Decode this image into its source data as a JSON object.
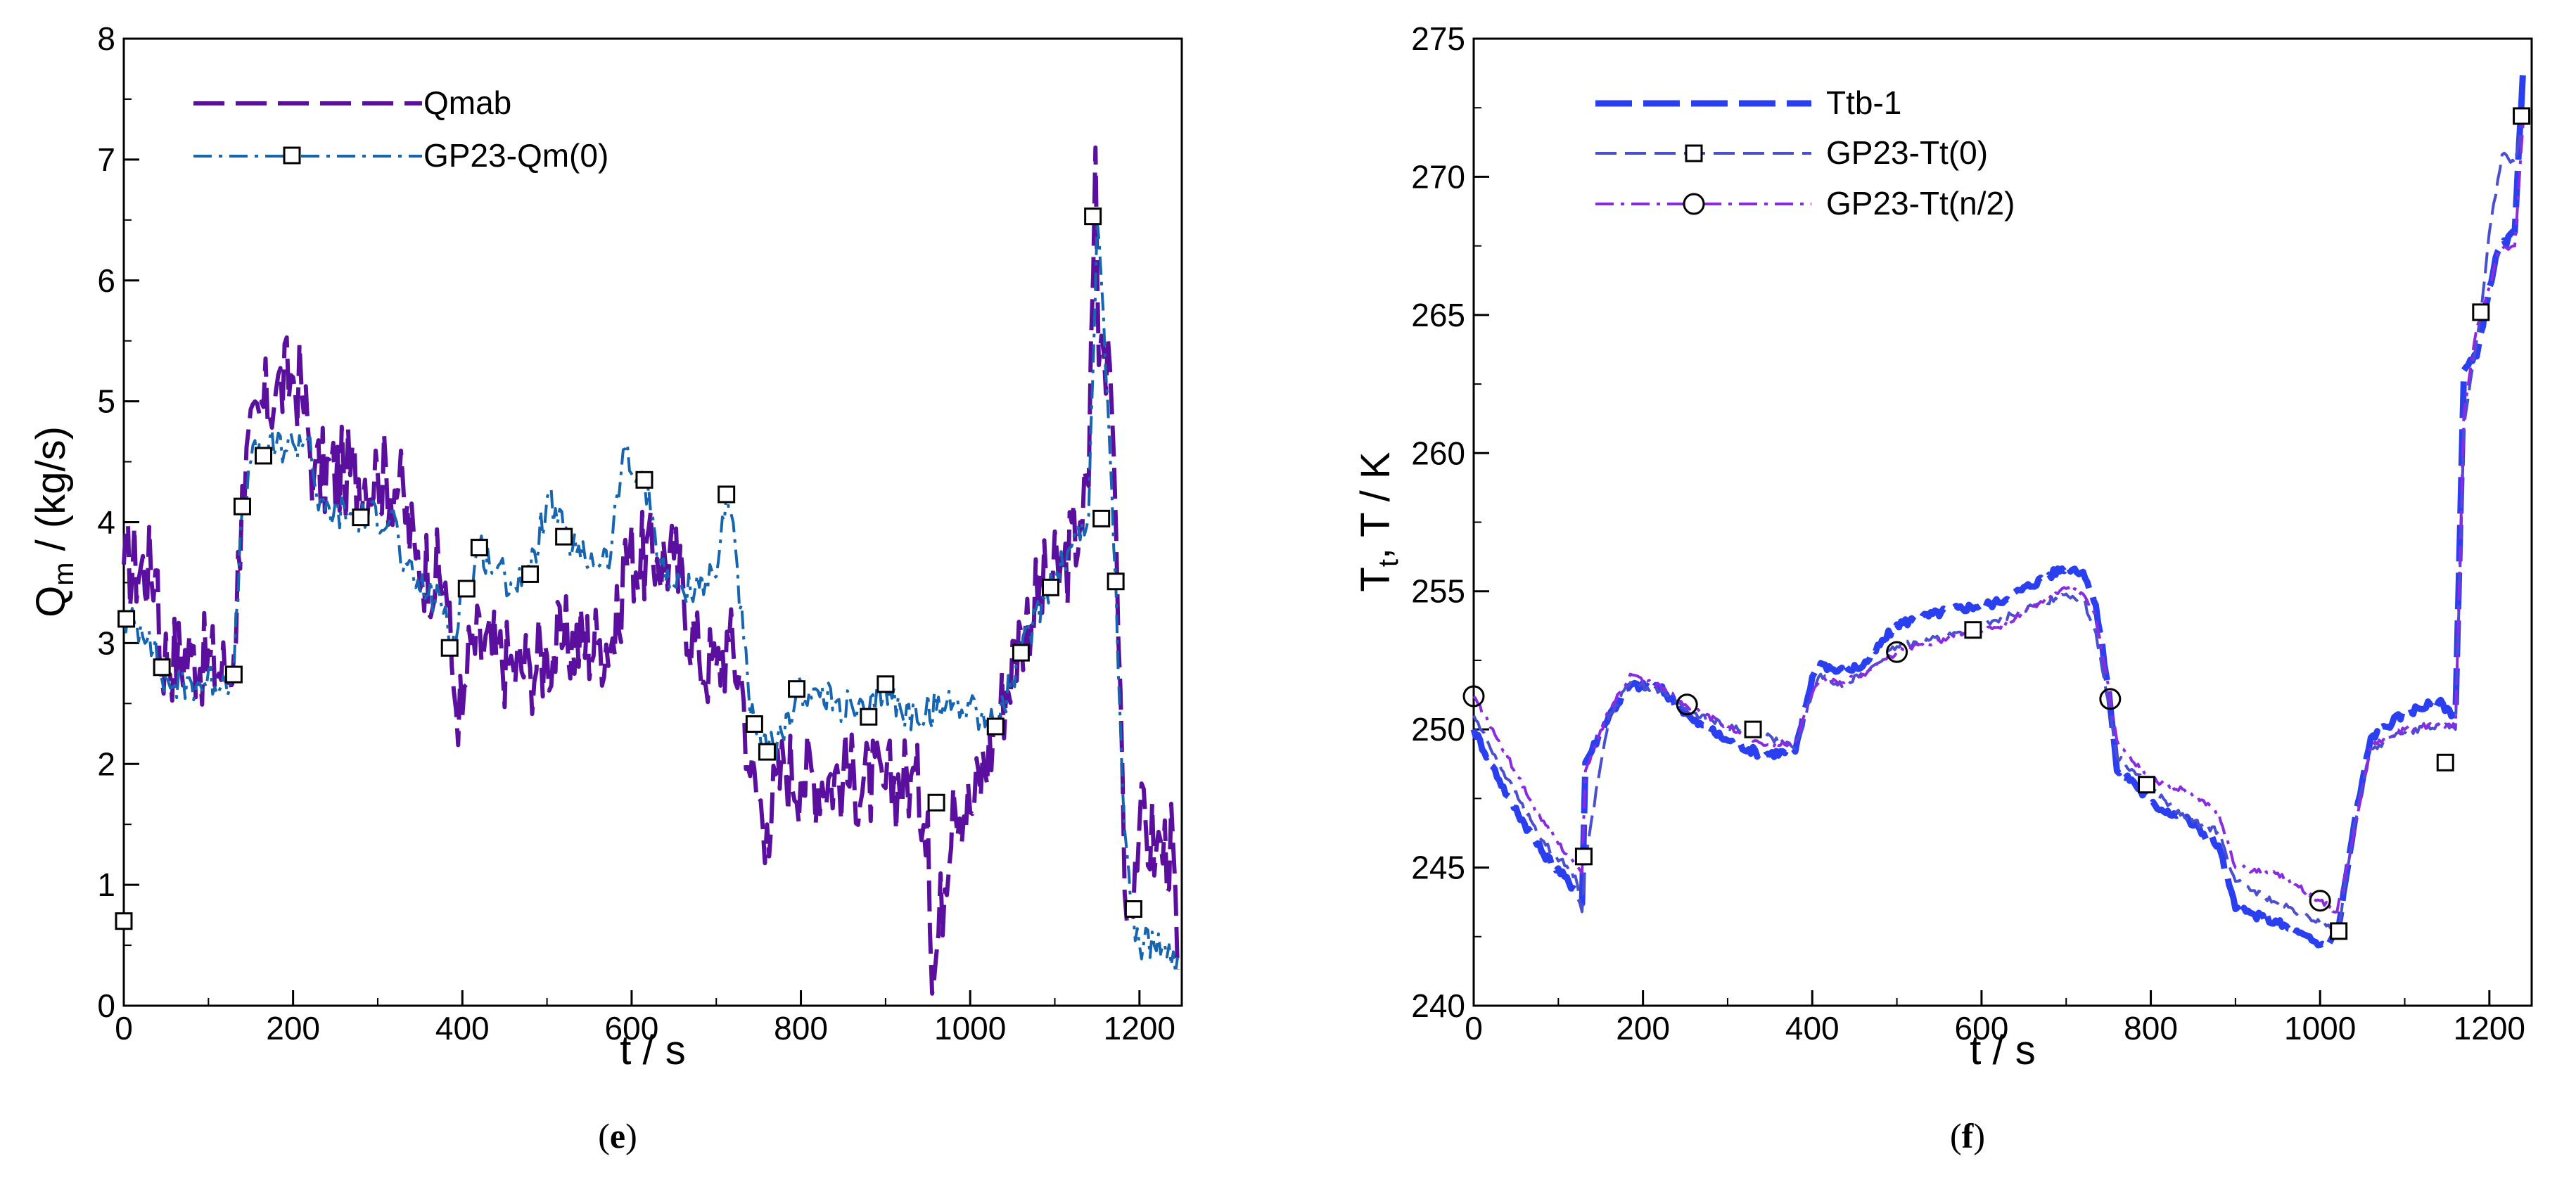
{
  "chart_data": [
    {
      "type": "line",
      "panel": "e",
      "caption_letter": "e",
      "xlabel": "t / s",
      "ylabel_main": "Q",
      "ylabel_sub": "m",
      "ylabel_tail": " / (kg/s)",
      "xlim": [
        0,
        1250
      ],
      "ylim": [
        0,
        8
      ],
      "xticks": [
        0,
        200,
        400,
        600,
        800,
        1000,
        1200
      ],
      "yticks": [
        0,
        1,
        2,
        3,
        4,
        5,
        6,
        7,
        8
      ],
      "legend_position": "top-left",
      "grid": false,
      "series": [
        {
          "name": "Qmab",
          "color": "#5b0f9e",
          "style": "long-dash",
          "marker": "none",
          "noise": 0.4,
          "x": [
            0,
            40,
            42,
            80,
            125,
            130,
            140,
            160,
            180,
            200,
            210,
            225,
            260,
            300,
            325,
            345,
            380,
            390,
            400,
            410,
            440,
            460,
            480,
            500,
            520,
            560,
            585,
            590,
            630,
            650,
            680,
            700,
            715,
            730,
            740,
            760,
            780,
            800,
            850,
            900,
            930,
            950,
            955,
            980,
            1000,
            1030,
            1060,
            1090,
            1110,
            1130,
            1140,
            1148,
            1152,
            1158,
            1165,
            1170,
            1180,
            1185,
            1200,
            1220,
            1240,
            1245
          ],
          "y": [
            3.65,
            3.6,
            2.9,
            2.9,
            2.75,
            2.9,
            4.3,
            4.9,
            5.1,
            5.2,
            5.1,
            4.4,
            4.4,
            4.4,
            4.3,
            3.7,
            3.5,
            2.6,
            2.4,
            3.0,
            2.9,
            2.8,
            2.8,
            2.9,
            3.0,
            3.0,
            3.1,
            3.7,
            3.7,
            3.7,
            2.85,
            2.8,
            3.0,
            2.7,
            1.9,
            1.5,
            2.0,
            1.9,
            1.9,
            1.8,
            1.9,
            1.6,
            0.1,
            1.8,
            1.6,
            2.3,
            3.1,
            3.5,
            3.6,
            4.0,
            4.3,
            7.1,
            5.3,
            5.4,
            5.3,
            4.5,
            1.9,
            0.7,
            1.5,
            1.3,
            1.3,
            0.3
          ]
        },
        {
          "name": "GP23-Qm(0)",
          "color": "#1565b0",
          "style": "dash-dot",
          "marker": "square",
          "noise": 0.15,
          "x": [
            0,
            30,
            45,
            60,
            120,
            130,
            140,
            150,
            165,
            200,
            220,
            230,
            280,
            320,
            330,
            360,
            380,
            385,
            400,
            410,
            420,
            440,
            460,
            475,
            480,
            500,
            520,
            540,
            575,
            590,
            600,
            615,
            640,
            660,
            700,
            712,
            720,
            740,
            760,
            780,
            795,
            810,
            840,
            880,
            900,
            920,
            960,
            980,
            1000,
            1030,
            1060,
            1090,
            1120,
            1140,
            1150,
            1155,
            1165,
            1172,
            1180,
            1190,
            1200,
            1230,
            1245
          ],
          "y": [
            3.2,
            3.1,
            2.7,
            2.65,
            2.7,
            2.75,
            4.1,
            4.5,
            4.6,
            4.65,
            4.7,
            4.1,
            4.05,
            4.05,
            3.6,
            3.4,
            3.3,
            2.95,
            3.4,
            3.5,
            3.8,
            3.6,
            3.5,
            3.6,
            3.55,
            4.2,
            3.9,
            3.7,
            3.7,
            4.6,
            4.4,
            4.35,
            3.5,
            3.45,
            3.55,
            4.25,
            4.0,
            2.4,
            2.1,
            2.2,
            2.6,
            2.6,
            2.5,
            2.4,
            2.65,
            2.4,
            2.45,
            2.5,
            2.5,
            2.3,
            2.9,
            3.45,
            3.8,
            4.05,
            6.5,
            6.0,
            4.6,
            3.5,
            1.8,
            0.8,
            0.5,
            0.5,
            0.4
          ]
        }
      ],
      "marker_points": [
        {
          "x": 0,
          "y": 0.7
        },
        {
          "x": 3,
          "y": 3.2
        },
        {
          "x": 45,
          "y": 2.8
        },
        {
          "x": 130,
          "y": 2.74
        },
        {
          "x": 140,
          "y": 4.13
        },
        {
          "x": 165,
          "y": 4.55
        },
        {
          "x": 280,
          "y": 4.04
        },
        {
          "x": 385,
          "y": 2.96
        },
        {
          "x": 405,
          "y": 3.45
        },
        {
          "x": 420,
          "y": 3.79
        },
        {
          "x": 480,
          "y": 3.57
        },
        {
          "x": 520,
          "y": 3.88
        },
        {
          "x": 615,
          "y": 4.35
        },
        {
          "x": 712,
          "y": 4.23
        },
        {
          "x": 745,
          "y": 2.33
        },
        {
          "x": 760,
          "y": 2.1
        },
        {
          "x": 795,
          "y": 2.62
        },
        {
          "x": 880,
          "y": 2.39
        },
        {
          "x": 900,
          "y": 2.66
        },
        {
          "x": 960,
          "y": 1.68
        },
        {
          "x": 1030,
          "y": 2.31
        },
        {
          "x": 1060,
          "y": 2.92
        },
        {
          "x": 1095,
          "y": 3.46
        },
        {
          "x": 1145,
          "y": 6.53
        },
        {
          "x": 1155,
          "y": 4.03
        },
        {
          "x": 1172,
          "y": 3.51
        },
        {
          "x": 1193,
          "y": 0.8
        }
      ]
    },
    {
      "type": "line",
      "panel": "f",
      "caption_letter": "f",
      "xlabel": "t / s",
      "ylabel_main": "T",
      "ylabel_sub": "t",
      "ylabel_tail": ", T / K",
      "xlim": [
        0,
        1250
      ],
      "ylim": [
        240,
        275
      ],
      "xticks": [
        0,
        200,
        400,
        600,
        800,
        1000,
        1200
      ],
      "yticks": [
        240,
        245,
        250,
        255,
        260,
        265,
        270,
        275
      ],
      "legend_position": "top-left",
      "grid": false,
      "series": [
        {
          "name": "Ttb-1",
          "color": "#2a3ff0",
          "style": "thick-long-dash",
          "marker": "none",
          "noise": 0.15,
          "x": [
            0,
            40,
            80,
            120,
            128,
            132,
            160,
            185,
            220,
            260,
            300,
            340,
            380,
            400,
            410,
            430,
            460,
            500,
            560,
            620,
            700,
            720,
            735,
            750,
            760,
            780,
            800,
            840,
            880,
            900,
            950,
            1000,
            1020,
            1040,
            1060,
            1100,
            1140,
            1160,
            1170,
            1185,
            1200,
            1210,
            1230,
            1240
          ],
          "y": [
            250,
            247.6,
            245.6,
            244.2,
            243.7,
            248.8,
            250.5,
            251.6,
            251.5,
            250.3,
            249.6,
            249.1,
            249.2,
            251.9,
            252.4,
            252.1,
            252.3,
            253.8,
            254.3,
            254.6,
            255.9,
            255.7,
            254.5,
            251.5,
            248.5,
            248.1,
            247.3,
            246.8,
            245.8,
            243.5,
            243.0,
            242.2,
            242.5,
            246.5,
            249.7,
            250.6,
            251.0,
            250.5,
            263.0,
            263.5,
            266.0,
            267.3,
            268.0,
            274.0
          ]
        },
        {
          "name": "GP23-Tt(0)",
          "color": "#4a4fd0",
          "style": "dash",
          "marker": "square",
          "noise": 0.12,
          "x": [
            0,
            40,
            80,
            120,
            128,
            132,
            160,
            185,
            220,
            260,
            300,
            330,
            380,
            400,
            410,
            430,
            460,
            500,
            560,
            590,
            700,
            720,
            735,
            750,
            760,
            780,
            795,
            840,
            880,
            900,
            950,
            1000,
            1022,
            1040,
            1060,
            1100,
            1148,
            1160,
            1170,
            1190,
            1200,
            1215,
            1230,
            1240
          ],
          "y": [
            250.5,
            248.2,
            246.0,
            244.7,
            243.4,
            245.4,
            250.5,
            251.7,
            251.4,
            250.6,
            250.1,
            250.0,
            249.3,
            251.3,
            252.0,
            251.6,
            252.0,
            253.0,
            253.4,
            253.6,
            254.9,
            254.7,
            253.5,
            251.0,
            249.0,
            248.5,
            248.0,
            246.8,
            246.3,
            244.5,
            243.7,
            243.0,
            242.8,
            246.5,
            249.3,
            249.9,
            250.2,
            250.0,
            261.0,
            265.1,
            268.0,
            270.8,
            270.5,
            272.2
          ]
        },
        {
          "name": "GP23-Tt(n/2)",
          "color": "#8a2be2",
          "style": "dash-dot",
          "marker": "circle",
          "noise": 0.1,
          "x": [
            0,
            40,
            80,
            120,
            128,
            132,
            160,
            185,
            220,
            250,
            300,
            340,
            380,
            400,
            410,
            430,
            460,
            500,
            560,
            620,
            700,
            720,
            735,
            752,
            760,
            780,
            800,
            840,
            880,
            900,
            950,
            1000,
            1020,
            1040,
            1060,
            1100,
            1140,
            1160,
            1170,
            1185,
            1200,
            1210,
            1230,
            1240
          ],
          "y": [
            251.2,
            249.0,
            246.7,
            245.1,
            244.8,
            248.5,
            250.7,
            252.0,
            251.6,
            250.9,
            250.1,
            249.5,
            249.5,
            251.3,
            251.8,
            251.7,
            252.0,
            252.8,
            253.3,
            253.7,
            255.1,
            254.9,
            254.1,
            251.1,
            249.6,
            248.8,
            248.2,
            247.8,
            247.0,
            245.0,
            244.8,
            243.8,
            243.4,
            246.2,
            249.4,
            250.0,
            250.2,
            250.1,
            261.5,
            264.5,
            266.0,
            267.3,
            267.5,
            272.0
          ]
        }
      ],
      "marker_points": [
        {
          "x": 130,
          "y": 245.4
        },
        {
          "x": 330,
          "y": 250.0
        },
        {
          "x": 590,
          "y": 253.6
        },
        {
          "x": 795,
          "y": 248.0
        },
        {
          "x": 1022,
          "y": 242.7
        },
        {
          "x": 1148,
          "y": 248.8
        },
        {
          "x": 1190,
          "y": 265.1
        },
        {
          "x": 1238,
          "y": 272.2
        }
      ],
      "circle_points": [
        {
          "x": 0,
          "y": 251.2
        },
        {
          "x": 252,
          "y": 250.9
        },
        {
          "x": 500,
          "y": 252.8
        },
        {
          "x": 752,
          "y": 251.1
        },
        {
          "x": 1000,
          "y": 243.8
        }
      ]
    }
  ]
}
